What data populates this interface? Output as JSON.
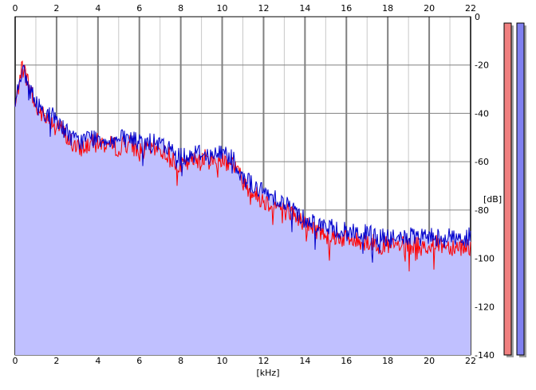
{
  "chart_data": {
    "type": "area",
    "xlabel": "[kHz]",
    "ylabel": "[dB]",
    "xlim": [
      0,
      22
    ],
    "ylim": [
      -140,
      0
    ],
    "x_ticks": [
      "0",
      "2",
      "4",
      "6",
      "8",
      "10",
      "12",
      "14",
      "16",
      "18",
      "20",
      "22"
    ],
    "y_ticks": [
      "0",
      "-20",
      "-40",
      "-60",
      "-80",
      "-100",
      "-120",
      "-140"
    ],
    "grid": true,
    "series": [
      {
        "color": "#ff0000",
        "x": [
          0.0,
          0.3,
          0.6,
          1.0,
          1.5,
          2.0,
          2.5,
          3.0,
          3.5,
          4.0,
          4.5,
          5.0,
          5.5,
          6.0,
          6.5,
          7.0,
          7.5,
          8.0,
          8.5,
          9.0,
          9.5,
          10.0,
          10.5,
          11.0,
          11.5,
          12.0,
          12.5,
          13.0,
          13.5,
          14.0,
          14.5,
          15.0,
          15.5,
          16.0,
          16.5,
          17.0,
          17.5,
          18.0,
          18.5,
          19.0,
          19.5,
          20.0,
          20.5,
          21.0,
          21.5,
          22.0
        ],
        "values": [
          -38,
          -20,
          -26,
          -38,
          -42,
          -44,
          -50,
          -55,
          -53,
          -52,
          -53,
          -54,
          -52,
          -56,
          -55,
          -55,
          -58,
          -62,
          -60,
          -58,
          -60,
          -59,
          -60,
          -68,
          -73,
          -76,
          -78,
          -80,
          -82,
          -86,
          -88,
          -90,
          -91,
          -92,
          -93,
          -93,
          -94,
          -95,
          -95,
          -95,
          -95,
          -95,
          -94,
          -95,
          -95,
          -95
        ]
      },
      {
        "color": "#0000cc",
        "x": [
          0.0,
          0.3,
          0.6,
          1.0,
          1.5,
          2.0,
          2.5,
          3.0,
          3.5,
          4.0,
          4.5,
          5.0,
          5.5,
          6.0,
          6.5,
          7.0,
          7.5,
          8.0,
          8.5,
          9.0,
          9.5,
          10.0,
          10.5,
          11.0,
          11.5,
          12.0,
          12.5,
          13.0,
          13.5,
          14.0,
          14.5,
          15.0,
          15.5,
          16.0,
          16.5,
          17.0,
          17.5,
          18.0,
          18.5,
          19.0,
          19.5,
          20.0,
          20.5,
          21.0,
          21.5,
          22.0
        ],
        "values": [
          -35,
          -22,
          -27,
          -36,
          -40,
          -42,
          -48,
          -52,
          -50,
          -50,
          -51,
          -51,
          -50,
          -52,
          -52,
          -53,
          -55,
          -58,
          -57,
          -56,
          -58,
          -56,
          -58,
          -66,
          -70,
          -73,
          -74,
          -77,
          -80,
          -84,
          -85,
          -87,
          -88,
          -89,
          -89,
          -90,
          -91,
          -92,
          -92,
          -91,
          -92,
          -91,
          -91,
          -91,
          -92,
          -91
        ]
      }
    ],
    "level_meters": [
      {
        "color": "#f08080",
        "level": 1.0
      },
      {
        "color": "#8080f0",
        "level": 1.0
      }
    ],
    "colors": {
      "fill": "#c0c0ff",
      "major_grid": "#808080",
      "minor_grid": "#c8c8c8",
      "meter_shadow": "#a0a0a0"
    }
  }
}
